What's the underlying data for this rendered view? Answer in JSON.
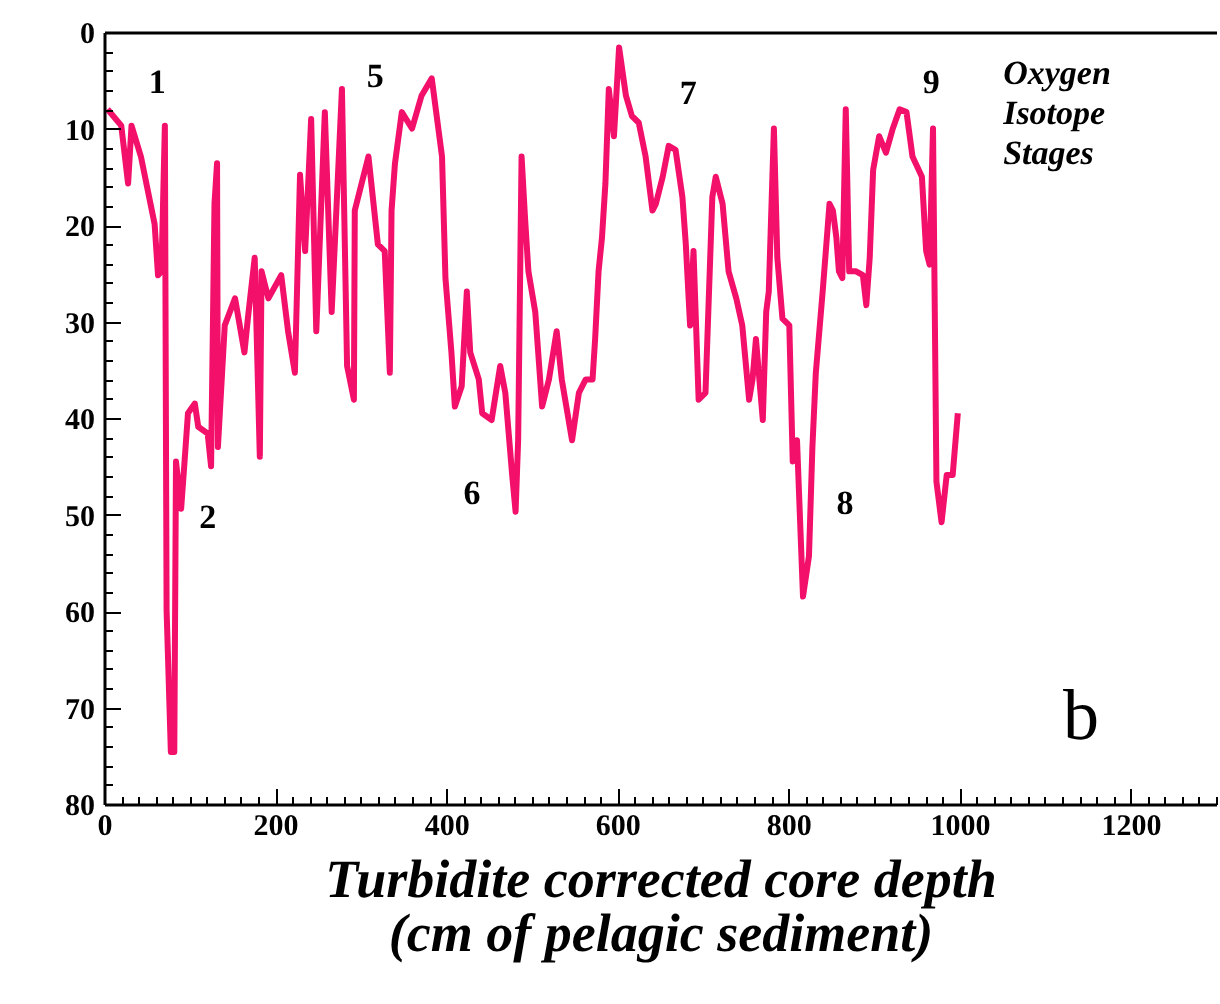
{
  "chart_data": {
    "type": "line",
    "xlabel": "Turbidite corrected core depth\n(cm of pelagic sediment)",
    "xlim": [
      0,
      1300
    ],
    "ylim": [
      80,
      0
    ],
    "xticks": [
      0,
      200,
      400,
      600,
      800,
      1000,
      1200
    ],
    "yticks": [
      0,
      10,
      20,
      30,
      40,
      50,
      60,
      70,
      80
    ],
    "grid": false,
    "series": [
      {
        "color": "#f2106a",
        "x": [
          3,
          19,
          27,
          31,
          42,
          50,
          58,
          62,
          66,
          70,
          72,
          77,
          81,
          83,
          89,
          93,
          97,
          105,
          109,
          120,
          124,
          128,
          131,
          132,
          140,
          152,
          163,
          167,
          175,
          181,
          183,
          191,
          206,
          214,
          222,
          228,
          234,
          241,
          247,
          257,
          265,
          277,
          283,
          291,
          292,
          308,
          319,
          327,
          333,
          335,
          339,
          347,
          359,
          370,
          382,
          394,
          398,
          405,
          409,
          417,
          423,
          427,
          437,
          441,
          452,
          462,
          468,
          476,
          480,
          483,
          487,
          491,
          495,
          503,
          511,
          519,
          528,
          534,
          546,
          554,
          562,
          570,
          573,
          577,
          581,
          585,
          589,
          595,
          601,
          609,
          616,
          624,
          632,
          640,
          644,
          652,
          659,
          667,
          675,
          679,
          684,
          688,
          694,
          702,
          710,
          714,
          722,
          729,
          738,
          745,
          753,
          757,
          761,
          769,
          773,
          776,
          782,
          786,
          792,
          800,
          804,
          809,
          816,
          823,
          827,
          831,
          839,
          847,
          851,
          855,
          858,
          862,
          866,
          870,
          878,
          886,
          890,
          894,
          898,
          905,
          913,
          921,
          929,
          937,
          944,
          955,
          960,
          964,
          968,
          972,
          978,
          984,
          991,
          997
        ],
        "values": [
          7.9,
          9.6,
          15.6,
          9.6,
          12.8,
          16.3,
          19.8,
          25.1,
          24.7,
          9.6,
          59.8,
          74.5,
          74.5,
          44.4,
          49.3,
          44.4,
          39.4,
          38.4,
          40.8,
          41.5,
          44.9,
          17.7,
          13.5,
          42.9,
          30.3,
          27.5,
          33.1,
          29.6,
          23.3,
          43.9,
          24.7,
          27.5,
          25.1,
          30.9,
          35.2,
          14.7,
          22.6,
          8.9,
          30.9,
          8.2,
          28.9,
          5.8,
          34.5,
          38.0,
          18.4,
          12.8,
          21.9,
          22.6,
          35.2,
          18.4,
          13.5,
          8.2,
          9.9,
          6.5,
          4.7,
          12.8,
          25.4,
          33.1,
          38.7,
          36.6,
          26.8,
          33.1,
          35.9,
          39.4,
          40.1,
          34.5,
          37.3,
          45.8,
          49.6,
          42.2,
          12.8,
          19.1,
          24.7,
          28.9,
          38.7,
          35.9,
          30.9,
          35.9,
          42.2,
          37.3,
          35.9,
          35.9,
          31.7,
          24.7,
          21.2,
          15.6,
          5.8,
          10.7,
          1.5,
          6.5,
          8.6,
          9.3,
          12.8,
          18.4,
          17.7,
          14.9,
          11.7,
          12.1,
          17.0,
          21.9,
          30.3,
          22.6,
          38.0,
          37.3,
          17.0,
          14.9,
          17.7,
          24.7,
          27.5,
          30.3,
          38.0,
          35.9,
          31.7,
          40.1,
          28.9,
          26.8,
          9.9,
          23.3,
          29.6,
          30.3,
          44.4,
          42.2,
          58.4,
          54.2,
          42.9,
          35.2,
          26.8,
          17.7,
          18.4,
          21.2,
          24.7,
          25.4,
          7.9,
          24.7,
          24.7,
          25.1,
          28.2,
          23.3,
          14.2,
          10.7,
          12.4,
          9.9,
          7.9,
          8.2,
          12.8,
          14.9,
          22.6,
          24.0,
          9.9,
          46.5,
          50.7,
          45.8,
          45.8,
          39.4
        ]
      }
    ],
    "annotations": [
      "1",
      "2",
      "5",
      "6",
      "7",
      "8",
      "9",
      "Oxygen\nIsotope\nStages",
      "b"
    ]
  }
}
